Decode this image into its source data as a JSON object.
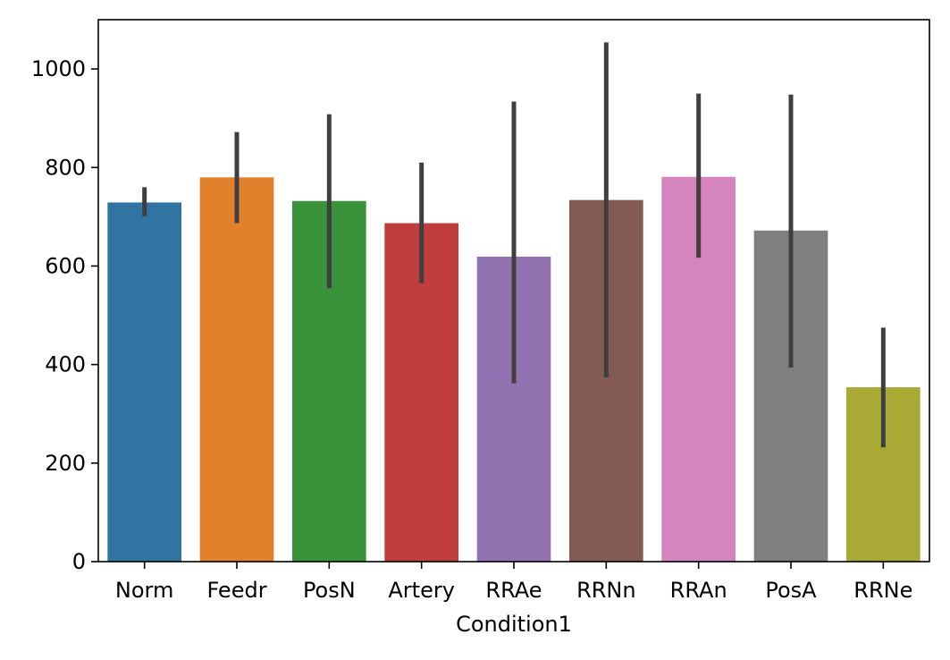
{
  "chart_data": {
    "type": "bar",
    "title": "",
    "xlabel": "Condition1",
    "ylabel": "",
    "ylim": [
      0,
      1100
    ],
    "yticks": [
      0,
      200,
      400,
      600,
      800,
      1000
    ],
    "grid": false,
    "legend": "none",
    "categories": [
      "Norm",
      "Feedr",
      "PosN",
      "Artery",
      "RRAe",
      "RRNn",
      "RRAn",
      "PosA",
      "RRNe"
    ],
    "values": [
      729,
      780,
      732,
      687,
      619,
      734,
      781,
      672,
      354
    ],
    "error_low": [
      701,
      687,
      555,
      565,
      362,
      374,
      617,
      394,
      232
    ],
    "error_high": [
      760,
      872,
      908,
      810,
      934,
      1054,
      950,
      948,
      475
    ],
    "colors": [
      "#3274a1",
      "#e1812c",
      "#3a923a",
      "#c03d3e",
      "#9372b2",
      "#845b53",
      "#d684bd",
      "#7f7f7f",
      "#a9aa35"
    ],
    "error_color": "#3f3f3f"
  }
}
